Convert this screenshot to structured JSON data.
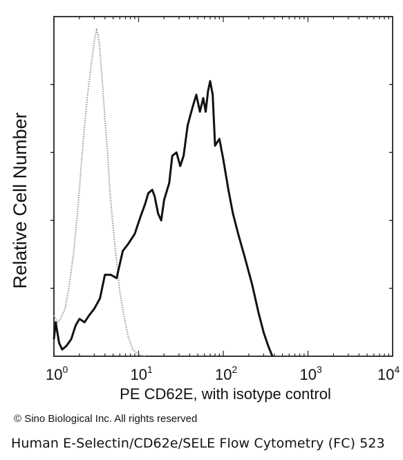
{
  "chart_data": {
    "type": "line",
    "title": "",
    "xlabel": "PE  CD62E,  with isotype control",
    "ylabel": "Relative Cell Number",
    "x_scale": "log",
    "xlim": [
      1,
      10000
    ],
    "ylim": [
      0,
      100
    ],
    "x_ticks": [
      {
        "base": "10",
        "exp": "0"
      },
      {
        "base": "10",
        "exp": "1"
      },
      {
        "base": "10",
        "exp": "2"
      },
      {
        "base": "10",
        "exp": "3"
      },
      {
        "base": "10",
        "exp": "4"
      }
    ],
    "grid": false,
    "legend": "none",
    "series": [
      {
        "style": "dotted",
        "color": "#9a9a9a",
        "x": [
          1.0,
          1.1,
          1.2,
          1.35,
          1.5,
          1.7,
          1.9,
          2.1,
          2.3,
          2.5,
          2.7,
          2.9,
          3.05,
          3.2,
          3.3,
          3.45,
          3.6,
          3.8,
          4.0,
          4.3,
          4.6,
          5.0,
          5.5,
          6.0,
          6.7,
          7.5,
          8.5,
          10.0,
          12.0
        ],
        "y": [
          12,
          10,
          11,
          14,
          20,
          30,
          42,
          56,
          68,
          77,
          84,
          90,
          94,
          96,
          95,
          92,
          86,
          78,
          70,
          60,
          48,
          38,
          28,
          19,
          12,
          6,
          2,
          0.5,
          0
        ]
      },
      {
        "style": "solid",
        "color": "#111111",
        "x": [
          1.0,
          1.05,
          1.15,
          1.25,
          1.4,
          1.6,
          1.8,
          2.0,
          2.3,
          2.6,
          3.0,
          3.5,
          4.0,
          4.7,
          5.5,
          6.5,
          7.5,
          9.0,
          10.5,
          12.0,
          13.0,
          14.5,
          15.5,
          17.0,
          18.5,
          20.0,
          23.0,
          25.0,
          28.0,
          31.0,
          34.0,
          38.0,
          43.0,
          48.0,
          53.0,
          58.0,
          62.0,
          66.0,
          70.0,
          75.0,
          80.0,
          90.0,
          100.0,
          115.0,
          130.0,
          150.0,
          180.0,
          220.0,
          260.0,
          300.0,
          340.0,
          380.0
        ],
        "y": [
          5,
          10,
          4,
          2,
          3,
          5,
          9,
          11,
          10,
          12,
          14,
          17,
          24,
          24,
          23,
          31,
          33,
          36,
          41,
          45,
          48,
          49,
          47,
          42,
          40,
          46,
          51,
          59,
          60,
          56,
          59,
          68,
          73,
          77,
          72,
          76,
          72,
          78,
          81,
          77,
          62,
          64,
          58,
          49,
          42,
          36,
          29,
          21,
          13,
          7,
          3,
          0
        ]
      }
    ]
  },
  "copyright": "© Sino Biological Inc. All rights reserved",
  "caption": "Human E-Selectin/CD62e/SELE Flow Cytometry (FC) 523"
}
